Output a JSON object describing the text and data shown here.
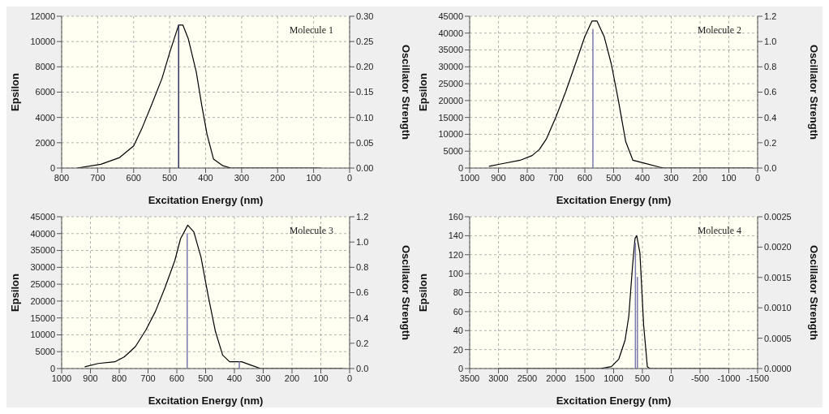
{
  "chart_data": [
    {
      "type": "line",
      "xlabel": "Excitation Energy (nm)",
      "ylabel": "Epsilon",
      "y2label": "Oscillator Strength",
      "annotations": [
        "Molecule 1"
      ],
      "grid": true,
      "marker": "none",
      "xlim": [
        800,
        0
      ],
      "xticks": [
        800,
        700,
        600,
        500,
        400,
        300,
        200,
        100,
        0
      ],
      "ylim": [
        0,
        12000
      ],
      "yticks": [
        0,
        2000,
        4000,
        6000,
        8000,
        10000,
        12000
      ],
      "y2lim": [
        0,
        0.3
      ],
      "y2ticks": [
        {
          "value": 0,
          "label": "0.00"
        },
        {
          "value": 0.05,
          "label": "0.05"
        },
        {
          "value": 0.1,
          "label": "0.10"
        },
        {
          "value": 0.15,
          "label": "0.15"
        },
        {
          "value": 0.2,
          "label": "0.20"
        },
        {
          "value": 0.25,
          "label": "0.25"
        },
        {
          "value": 0.3,
          "label": "0.30"
        }
      ],
      "series": [
        {
          "color": "#000000",
          "x": [
            757,
            691,
            639,
            600,
            576,
            550,
            521,
            499,
            475,
            463,
            448,
            426,
            411,
            396,
            378,
            352,
            330,
            80
          ],
          "values": [
            0,
            300,
            830,
            1750,
            3200,
            5000,
            7100,
            9200,
            11300,
            11300,
            10200,
            7600,
            5000,
            2650,
            700,
            180,
            0,
            0
          ]
        },
        {
          "type": "bar",
          "axis": "y2",
          "color": "#33335c",
          "x": [
            475
          ],
          "values": [
            0.283
          ]
        }
      ]
    },
    {
      "type": "line",
      "xlabel": "Excitation Energy (nm)",
      "ylabel": "Epsilon",
      "y2label": "Oscillator Strength",
      "annotations": [
        "Molecule 2"
      ],
      "grid": true,
      "marker": "none",
      "xlim": [
        1000,
        0
      ],
      "xticks": [
        1000,
        900,
        800,
        700,
        600,
        500,
        400,
        300,
        200,
        100,
        0
      ],
      "ylim": [
        0,
        45000
      ],
      "yticks": [
        0,
        5000,
        10000,
        15000,
        20000,
        25000,
        30000,
        35000,
        40000,
        45000
      ],
      "y2lim": [
        0,
        1.2
      ],
      "y2ticks": [
        {
          "value": 0,
          "label": "0.0"
        },
        0.2,
        0.4,
        0.6,
        0.8,
        {
          "value": 1,
          "label": "1.0"
        },
        1.2
      ],
      "series": [
        {
          "color": "#000000",
          "x": [
            933,
            892,
            825,
            783,
            758,
            733,
            700,
            667,
            633,
            600,
            575,
            558,
            533,
            508,
            483,
            458,
            433,
            392,
            342,
            325,
            17
          ],
          "values": [
            500,
            1200,
            2300,
            3700,
            5500,
            8700,
            15200,
            22500,
            30800,
            39000,
            43600,
            43600,
            39000,
            30800,
            19800,
            7800,
            2300,
            1400,
            300,
            0,
            0
          ]
        },
        {
          "type": "bar",
          "axis": "y2",
          "color": "#7a7ab0",
          "x": [
            572
          ],
          "values": [
            1.1
          ]
        }
      ]
    },
    {
      "type": "line",
      "xlabel": "Excitation Energy (nm)",
      "ylabel": "Epsilon",
      "y2label": "Oscillator Strength",
      "annotations": [
        "Molecule 3"
      ],
      "grid": true,
      "marker": "none",
      "xlim": [
        1000,
        0
      ],
      "xticks": [
        1000,
        900,
        800,
        700,
        600,
        500,
        400,
        300,
        200,
        100,
        0
      ],
      "ylim": [
        0,
        45000
      ],
      "yticks": [
        0,
        5000,
        10000,
        15000,
        20000,
        25000,
        30000,
        35000,
        40000,
        45000
      ],
      "y2lim": [
        0,
        1.2
      ],
      "y2ticks": [
        {
          "value": 0,
          "label": "0.0"
        },
        0.2,
        0.4,
        0.6,
        0.8,
        {
          "value": 1,
          "label": "1.0"
        },
        1.2
      ],
      "series": [
        {
          "color": "#000000",
          "x": [
            920,
            873,
            815,
            782,
            744,
            707,
            674,
            641,
            607,
            587,
            562,
            541,
            516,
            491,
            466,
            441,
            417,
            375,
            342,
            309,
            22
          ],
          "values": [
            500,
            1500,
            2000,
            3500,
            6500,
            11500,
            17000,
            24000,
            32000,
            38500,
            42500,
            40500,
            33000,
            21500,
            11000,
            4000,
            2000,
            2000,
            1000,
            0,
            0
          ]
        },
        {
          "type": "bar",
          "axis": "y2",
          "color": "#7a7ab0",
          "x": [
            564,
            383
          ],
          "values": [
            1.07,
            0.056
          ]
        }
      ]
    },
    {
      "type": "line",
      "xlabel": "Excitation Energy (nm)",
      "ylabel": "Epsilon",
      "y2label": "Oscillator Strength",
      "annotations": [
        "Molecule 4"
      ],
      "grid": true,
      "marker": "none",
      "xlim": [
        3500,
        -1500
      ],
      "xticks": [
        3500,
        3000,
        2500,
        2000,
        1500,
        1000,
        500,
        0,
        -500,
        -1000,
        -1500
      ],
      "ylim": [
        0,
        160
      ],
      "yticks": [
        0,
        20,
        40,
        60,
        80,
        100,
        120,
        140,
        160
      ],
      "y2lim": [
        0,
        0.0025
      ],
      "y2ticks": [
        {
          "value": 0,
          "label": "0.0000"
        },
        {
          "value": 0.0005,
          "label": "0.0005"
        },
        {
          "value": 0.001,
          "label": "0.0010"
        },
        {
          "value": 0.0015,
          "label": "0.0015"
        },
        {
          "value": 0.002,
          "label": "0.0020"
        },
        {
          "value": 0.0025,
          "label": "0.0025"
        }
      ],
      "series": [
        {
          "color": "#000000",
          "x": [
            3000,
            1233,
            1040,
            910,
            801,
            737,
            672,
            629,
            599,
            544,
            479,
            415,
            372,
            -1000
          ],
          "values": [
            0,
            0,
            2,
            10,
            30,
            55,
            108,
            137,
            140,
            122,
            46,
            2,
            0,
            0
          ]
        },
        {
          "type": "bar",
          "axis": "y2",
          "color": "#7a7ab0",
          "x": [
            622,
            587
          ],
          "values": [
            0.00207,
            0.00151
          ]
        }
      ]
    }
  ]
}
